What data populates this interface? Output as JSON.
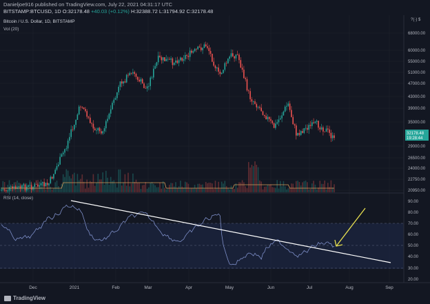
{
  "header": {
    "publisher": "Danieljoe916 published on TradingView.com, July 22, 2021 04:31:17 UTC",
    "symbol": "BITSTAMP:BTCUSD, 1D",
    "open_label": "O:",
    "open": "32178.48",
    "change": "+40.03 (+0.12%)",
    "high_label": "H:",
    "high": "32388.72",
    "low_label": "L:",
    "low": "31794.92",
    "close_label": "C:",
    "close": "32178.48"
  },
  "legend": {
    "title": "Bitcoin / U.S. Dollar, 1D, BITSTAMP",
    "volume": "Vol (20)",
    "rsi": "RSI (14, close)"
  },
  "price_axis": {
    "top_label": "?(·) $",
    "ticks": [
      "68000.00",
      "60000.00",
      "55000.00",
      "51000.00",
      "47000.00",
      "43000.00",
      "39000.00",
      "35000.00",
      "29000.00",
      "26500.00",
      "24000.00",
      "22750.00",
      "20950.00"
    ],
    "last_price": "32178.48",
    "countdown": "19:28:44"
  },
  "rsi_axis": {
    "ticks": [
      "90.00",
      "80.00",
      "70.00",
      "60.00",
      "50.00",
      "40.00",
      "30.00",
      "20.00"
    ]
  },
  "time_axis": {
    "ticks": [
      "Dec",
      "2021",
      "Feb",
      "Mar",
      "Apr",
      "May",
      "Jun",
      "Jul",
      "Aug",
      "Sep"
    ]
  },
  "footer": {
    "brand": "TradingView"
  },
  "colors": {
    "background": "#131722",
    "up": "#26a69a",
    "down": "#ef5350",
    "rsi_line": "#7e8fc9",
    "trendline": "#ffffff",
    "arrow": "#e8e050",
    "rsi_band": "#1f2a4a"
  },
  "icons": [
    "tradingview-logo-icon"
  ]
}
